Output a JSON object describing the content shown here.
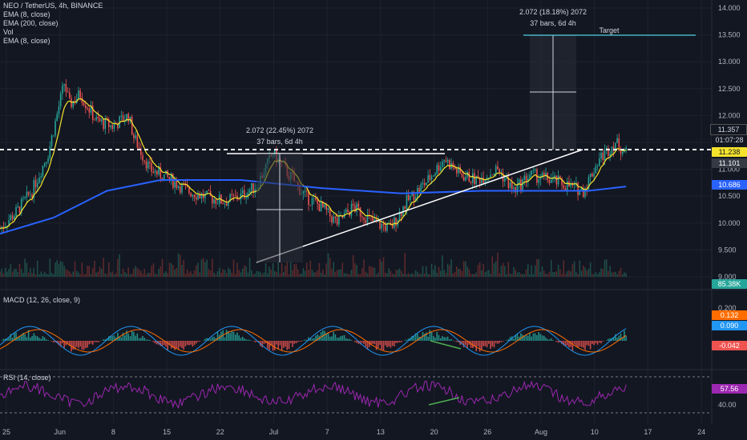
{
  "legend": {
    "symbol_line": "NEO / TetherUS, 4h, BINANCE",
    "ema8": "EMA (8, close)",
    "ema200": "EMA (200, close)",
    "vol": "Vol",
    "ema8b": "EMA (8, close)"
  },
  "macd_label": "MACD (12, 26, close, 9)",
  "rsi_label": "RSI (14, close)",
  "tags": {
    "price_high": "11.357",
    "countdown": "01:07:28",
    "last_price": "11.238",
    "ema8_value": "11.101",
    "ema200_value": "10.686",
    "volume": "85.38K",
    "macd_a": "0.132",
    "macd_b": "0.090",
    "macd_hist": "-0.042",
    "rsi": "57.56"
  },
  "annotations": {
    "left_measure_1": "2.072 (22.45%) 2072",
    "left_measure_2": "37 bars, 6d 4h",
    "right_measure_1": "2.072 (18.18%) 2072",
    "right_measure_2": "37 bars, 6d 4h",
    "target": "Target"
  },
  "colors": {
    "background": "#131722",
    "up": "#26a69a",
    "down": "#ef5350",
    "ema8": "#f5e32c",
    "ema200": "#2962ff",
    "macd": "#2196f3",
    "signal": "#ff6d00",
    "rsi": "#9c27b0"
  },
  "chart_data": {
    "type": "candlestick",
    "symbol": "NEO / TetherUS",
    "timeframe": "4h",
    "exchange": "BINANCE",
    "price_axis": [
      "14.000",
      "13.500",
      "13.000",
      "12.500",
      "12.000",
      "11.500",
      "11.000",
      "10.500",
      "10.000",
      "9.500",
      "9.000"
    ],
    "ylim": [
      8.95,
      14.05
    ],
    "x_ticks": [
      "25",
      "Jun",
      "8",
      "15",
      "22",
      "Jul",
      "7",
      "13",
      "20",
      "26",
      "Aug",
      "10",
      "17",
      "24"
    ],
    "close_path": [
      [
        0,
        9.9
      ],
      [
        3,
        10.2
      ],
      [
        6,
        10.6
      ],
      [
        9,
        11.3
      ],
      [
        12,
        12.6
      ],
      [
        13,
        12.2
      ],
      [
        15,
        12.4
      ],
      [
        18,
        11.9
      ],
      [
        21,
        11.8
      ],
      [
        24,
        12.0
      ],
      [
        25,
        11.6
      ],
      [
        28,
        11.0
      ],
      [
        32,
        10.8
      ],
      [
        35,
        10.6
      ],
      [
        38,
        10.5
      ],
      [
        42,
        10.4
      ],
      [
        45,
        10.5
      ],
      [
        48,
        10.7
      ],
      [
        51,
        11.3
      ],
      [
        54,
        10.9
      ],
      [
        57,
        10.5
      ],
      [
        60,
        10.3
      ],
      [
        63,
        10.0
      ],
      [
        66,
        10.3
      ],
      [
        70,
        10.0
      ],
      [
        73,
        9.9
      ],
      [
        76,
        10.4
      ],
      [
        80,
        10.8
      ],
      [
        83,
        11.2
      ],
      [
        86,
        10.9
      ],
      [
        89,
        10.8
      ],
      [
        93,
        11.0
      ],
      [
        96,
        10.6
      ],
      [
        99,
        10.9
      ],
      [
        103,
        10.8
      ],
      [
        106,
        10.7
      ],
      [
        109,
        10.6
      ],
      [
        112,
        11.2
      ],
      [
        115,
        11.5
      ],
      [
        117,
        11.3
      ]
    ],
    "x_domain": [
      0,
      133
    ],
    "ema200_path": [
      [
        0,
        9.8
      ],
      [
        10,
        10.1
      ],
      [
        20,
        10.6
      ],
      [
        30,
        10.8
      ],
      [
        45,
        10.8
      ],
      [
        60,
        10.65
      ],
      [
        75,
        10.55
      ],
      [
        90,
        10.6
      ],
      [
        110,
        10.6
      ],
      [
        117,
        10.68
      ]
    ],
    "levels": {
      "resistance": 11.25,
      "target": 13.5
    },
    "measure_left": {
      "from": 9.27,
      "to": 11.3,
      "change": "2.072 (22.45%) 2072",
      "span": "37 bars, 6d 4h"
    },
    "measure_right": {
      "from": 11.43,
      "to": 13.5,
      "change": "2.072 (18.18%) 2072",
      "span": "37 bars, 6d 4h"
    },
    "macd_axis": [
      "0.200",
      "0.132",
      "0.090",
      "-0.042"
    ],
    "rsi_axis": [
      "57.56",
      "40.00"
    ],
    "rsi_bounds": [
      30,
      70
    ]
  }
}
